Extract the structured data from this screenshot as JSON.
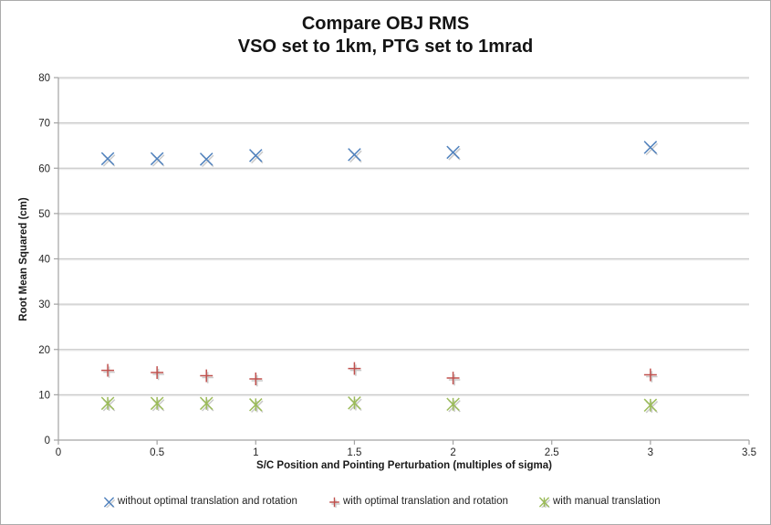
{
  "chart_data": {
    "type": "scatter",
    "title": "Compare OBJ RMS",
    "subtitle": "VSO set to 1km, PTG set to 1mrad",
    "xlabel": "S/C Position and Pointing Perturbation (multiples of sigma)",
    "ylabel": "Root Mean Squared (cm)",
    "xlim": [
      0,
      3.5
    ],
    "ylim": [
      0,
      80
    ],
    "xticks": [
      0,
      0.5,
      1,
      1.5,
      2,
      2.5,
      3,
      3.5
    ],
    "yticks": [
      0,
      10,
      20,
      30,
      40,
      50,
      60,
      70,
      80
    ],
    "grid": "horizontal",
    "legend_position": "bottom",
    "x": [
      0.25,
      0.5,
      0.75,
      1,
      1.5,
      2,
      3
    ],
    "series": [
      {
        "name": "without optimal translation and rotation",
        "marker": "x",
        "color": "#4F81BD",
        "values": [
          62.1,
          62.1,
          62.0,
          62.8,
          63.0,
          63.5,
          64.6
        ]
      },
      {
        "name": "with optimal translation and rotation",
        "marker": "plus",
        "color": "#C0504D",
        "values": [
          15.4,
          14.9,
          14.2,
          13.5,
          15.8,
          13.7,
          14.4
        ]
      },
      {
        "name": "with manual translation",
        "marker": "asterisk",
        "color": "#9BBB59",
        "values": [
          8.1,
          8.1,
          8.1,
          7.8,
          8.2,
          7.9,
          7.7
        ]
      }
    ]
  },
  "colors": {
    "gridline": "#c9c9c9",
    "axis": "#a3a3a3",
    "tick_label": "#262626",
    "marker_shadow": "#9e9e9e"
  }
}
